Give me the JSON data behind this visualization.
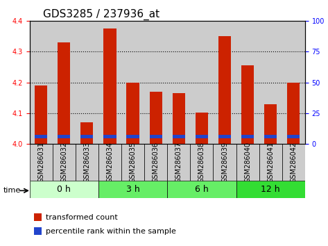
{
  "title": "GDS3285 / 237936_at",
  "samples": [
    "GSM286031",
    "GSM286032",
    "GSM286033",
    "GSM286034",
    "GSM286035",
    "GSM286036",
    "GSM286037",
    "GSM286038",
    "GSM286039",
    "GSM286040",
    "GSM286041",
    "GSM286042"
  ],
  "transformed_count": [
    4.19,
    4.33,
    4.07,
    4.375,
    4.2,
    4.17,
    4.165,
    4.102,
    4.35,
    4.255,
    4.13,
    4.2
  ],
  "percentile_rank": [
    10,
    12,
    10,
    12,
    10,
    10,
    10,
    10,
    12,
    12,
    10,
    12
  ],
  "bar_base": 4.0,
  "ylim": [
    4.0,
    4.4
  ],
  "y2lim": [
    0,
    100
  ],
  "yticks": [
    4.0,
    4.1,
    4.2,
    4.3,
    4.4
  ],
  "y2ticks": [
    0,
    25,
    50,
    75,
    100
  ],
  "bar_color": "#cc2200",
  "percentile_color": "#2244cc",
  "grid_color": "#000000",
  "bar_width": 0.55,
  "groups": [
    {
      "label": "0 h",
      "start": 0,
      "end": 3,
      "color": "#ccffcc"
    },
    {
      "label": "3 h",
      "start": 3,
      "end": 6,
      "color": "#66ee66"
    },
    {
      "label": "6 h",
      "start": 6,
      "end": 9,
      "color": "#66ee66"
    },
    {
      "label": "12 h",
      "start": 9,
      "end": 12,
      "color": "#33dd33"
    }
  ],
  "time_label": "time",
  "legend_bar_label": "transformed count",
  "legend_pct_label": "percentile rank within the sample",
  "title_fontsize": 11,
  "tick_fontsize": 7,
  "label_fontsize": 7,
  "group_fontsize": 9,
  "legend_fontsize": 8,
  "background_color": "#ffffff",
  "plot_bg_color": "#ffffff",
  "sample_bg_color": "#cccccc"
}
